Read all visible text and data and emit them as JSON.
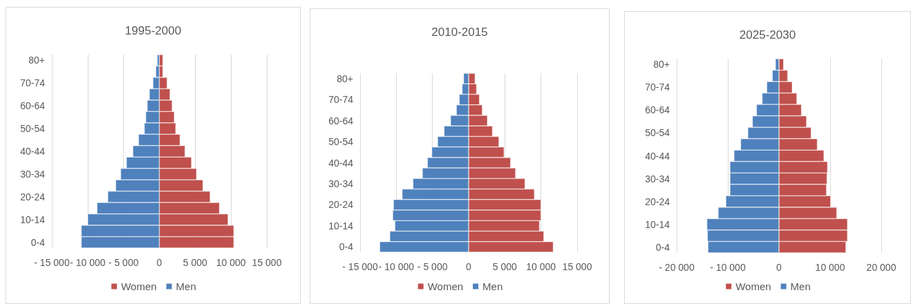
{
  "chart_data": [
    {
      "type": "bar",
      "title": "1995-2000",
      "orientation": "horizontal",
      "stacked": true,
      "grid": "x",
      "legend": "bottom",
      "categories": [
        "80+",
        null,
        "70-74",
        null,
        "60-64",
        null,
        "50-54",
        null,
        "40-44",
        null,
        "30-34",
        null,
        "20-24",
        null,
        "10-14",
        null,
        "0-4"
      ],
      "series": [
        {
          "name": "Women",
          "color": "#c0504d",
          "values": [
            500,
            500,
            1100,
            1500,
            1800,
            2100,
            2300,
            2900,
            3600,
            4500,
            5200,
            6100,
            7100,
            8400,
            9600,
            10400,
            10400
          ]
        },
        {
          "name": "Men",
          "color": "#4f81bd",
          "values": [
            -300,
            -500,
            -900,
            -1400,
            -1700,
            -1900,
            -2100,
            -2900,
            -3700,
            -4600,
            -5400,
            -6100,
            -7200,
            -8700,
            -10000,
            -10900,
            -10900
          ]
        }
      ],
      "xlim": [
        -15000,
        15000
      ],
      "xticks": [
        {
          "value": -15000,
          "label": "- 15 000"
        },
        {
          "value": -10000,
          "label": "- 10 000"
        },
        {
          "value": -5000,
          "label": "- 5 000"
        },
        {
          "value": 0,
          "label": "0"
        },
        {
          "value": 5000,
          "label": "5 000"
        },
        {
          "value": 10000,
          "label": "10 000"
        },
        {
          "value": 15000,
          "label": "15 000"
        }
      ]
    },
    {
      "type": "bar",
      "title": "2010-2015",
      "orientation": "horizontal",
      "stacked": true,
      "grid": "x",
      "legend": "bottom",
      "categories": [
        "80+",
        null,
        "70-74",
        null,
        "60-64",
        null,
        "50-54",
        null,
        "40-44",
        null,
        "30-34",
        null,
        "20-24",
        null,
        "10-14",
        null,
        "0-4"
      ],
      "series": [
        {
          "name": "Women",
          "color": "#c0504d",
          "values": [
            900,
            1100,
            1500,
            1900,
            2600,
            3300,
            4200,
            4900,
            5800,
            6500,
            7800,
            9100,
            10000,
            10000,
            9800,
            10400,
            11700
          ]
        },
        {
          "name": "Men",
          "color": "#4f81bd",
          "values": [
            -700,
            -900,
            -1300,
            -1700,
            -2500,
            -3400,
            -4300,
            -5100,
            -5700,
            -6400,
            -7700,
            -9200,
            -10400,
            -10500,
            -10200,
            -10900,
            -12300
          ]
        }
      ],
      "xlim": [
        -15000,
        15000
      ],
      "xticks": [
        {
          "value": -15000,
          "label": "- 15 000"
        },
        {
          "value": -10000,
          "label": "- 10 000"
        },
        {
          "value": -5000,
          "label": "- 5 000"
        },
        {
          "value": 0,
          "label": "0"
        },
        {
          "value": 5000,
          "label": "5 000"
        },
        {
          "value": 10000,
          "label": "10 000"
        },
        {
          "value": 15000,
          "label": "15 000"
        }
      ]
    },
    {
      "type": "bar",
      "title": "2025-2030",
      "orientation": "horizontal",
      "stacked": true,
      "grid": "x",
      "legend": "bottom",
      "categories": [
        "80+",
        null,
        "70-74",
        null,
        "60-64",
        null,
        "50-54",
        null,
        "40-44",
        null,
        "30-34",
        null,
        "20-24",
        null,
        "10-14",
        null,
        "0-4"
      ],
      "series": [
        {
          "name": "Women",
          "color": "#c0504d",
          "values": [
            900,
            1700,
            2600,
            3500,
            4400,
            5400,
            6300,
            7500,
            8800,
            9500,
            9400,
            9300,
            10100,
            11300,
            13400,
            13400,
            13100
          ]
        },
        {
          "name": "Men",
          "color": "#4f81bd",
          "values": [
            -700,
            -1300,
            -2400,
            -3300,
            -4400,
            -5200,
            -6100,
            -7500,
            -8800,
            -9600,
            -9600,
            -9600,
            -10400,
            -11900,
            -14100,
            -14000,
            -13900
          ]
        }
      ],
      "xlim": [
        -20000,
        20000
      ],
      "xticks": [
        {
          "value": -20000,
          "label": "- 20 000"
        },
        {
          "value": -10000,
          "label": "- 10 000"
        },
        {
          "value": 0,
          "label": "0"
        },
        {
          "value": 10000,
          "label": "10 000"
        },
        {
          "value": 20000,
          "label": "20 000"
        }
      ]
    }
  ]
}
